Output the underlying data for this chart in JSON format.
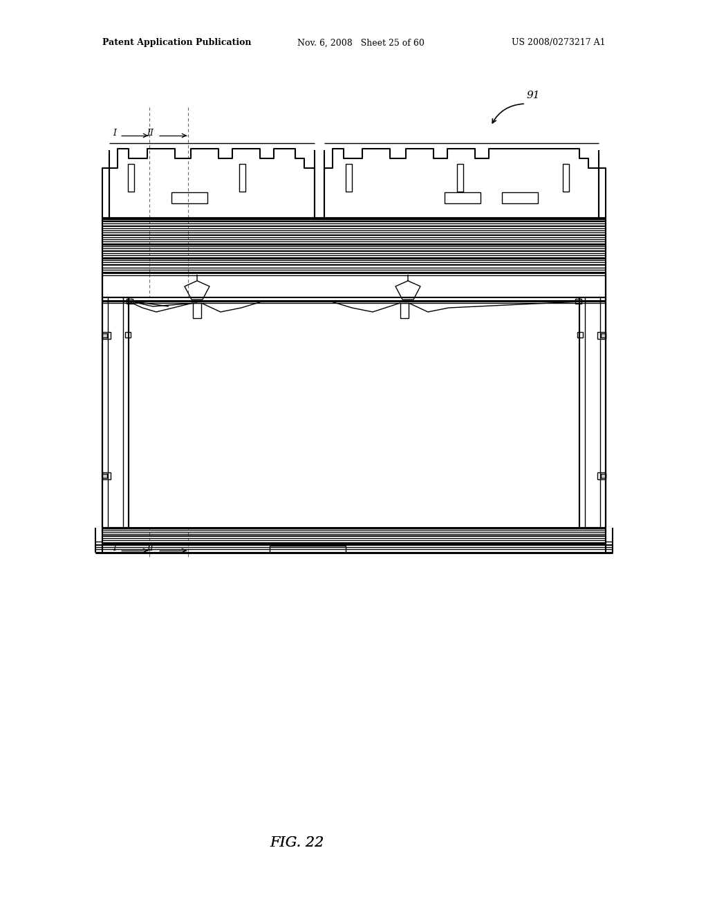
{
  "bg_color": "#ffffff",
  "line_color": "#000000",
  "fig_label": "FIG. 22",
  "fig_number": "91",
  "header_left": "Patent Application Publication",
  "header_mid": "Nov. 6, 2008   Sheet 25 of 60",
  "header_right": "US 2008/0273217 A1"
}
